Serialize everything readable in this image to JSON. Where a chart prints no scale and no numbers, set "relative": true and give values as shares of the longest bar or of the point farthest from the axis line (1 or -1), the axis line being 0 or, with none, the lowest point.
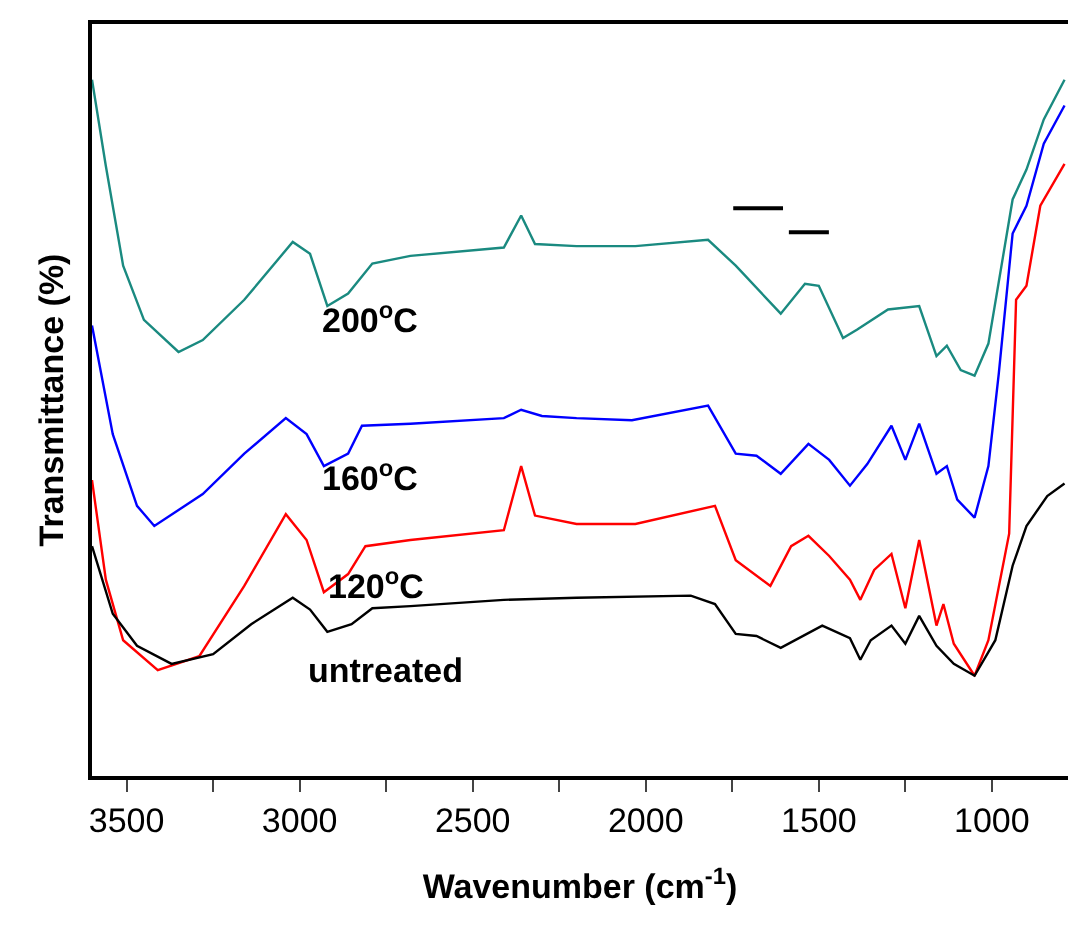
{
  "chart_data": {
    "type": "line",
    "relative": true,
    "xlabel": "Wavenumber (cm$^{-1}$)",
    "ylabel": "Transmittance (%)",
    "xlim": [
      3600,
      780
    ],
    "xticks": [
      3500,
      {
        "value": 3250,
        "label": null
      },
      3000,
      {
        "value": 2750,
        "label": null
      },
      2500,
      {
        "value": 2250,
        "label": null
      },
      2000,
      {
        "value": 1750,
        "label": null
      },
      1500,
      {
        "value": 1250,
        "label": null
      },
      1000
    ],
    "marker": "none",
    "line_style": "solid",
    "series": [
      {
        "color": "#1a8a80",
        "x": [
          3600,
          3560,
          3510,
          3450,
          3350,
          3280,
          3160,
          3020,
          2970,
          2920,
          2860,
          2790,
          2680,
          2410,
          2360,
          2320,
          2200,
          2030,
          1820,
          1740,
          1610,
          1540,
          1500,
          1430,
          1390,
          1300,
          1210,
          1160,
          1130,
          1090,
          1050,
          1010,
          940,
          900,
          850,
          790
        ],
        "values": [
          1.0,
          0.876,
          0.733,
          0.655,
          0.609,
          0.626,
          0.684,
          0.767,
          0.75,
          0.675,
          0.693,
          0.736,
          0.747,
          0.759,
          0.805,
          0.764,
          0.761,
          0.761,
          0.77,
          0.733,
          0.664,
          0.707,
          0.704,
          0.629,
          0.641,
          0.67,
          0.675,
          0.603,
          0.618,
          0.583,
          0.575,
          0.621,
          0.828,
          0.871,
          0.943,
          1.0
        ]
      },
      {
        "color": "#0000ff",
        "x": [
          3600,
          3540,
          3470,
          3420,
          3280,
          3160,
          3040,
          2980,
          2930,
          2860,
          2820,
          2680,
          2410,
          2360,
          2300,
          2200,
          2040,
          1820,
          1740,
          1680,
          1610,
          1530,
          1470,
          1410,
          1360,
          1290,
          1250,
          1210,
          1160,
          1130,
          1100,
          1050,
          1010,
          980,
          940,
          900,
          850,
          790
        ],
        "values": [
          0.647,
          0.491,
          0.388,
          0.359,
          0.405,
          0.463,
          0.514,
          0.491,
          0.445,
          0.463,
          0.503,
          0.506,
          0.514,
          0.526,
          0.517,
          0.514,
          0.511,
          0.532,
          0.463,
          0.46,
          0.434,
          0.477,
          0.454,
          0.417,
          0.448,
          0.503,
          0.454,
          0.506,
          0.434,
          0.445,
          0.397,
          0.371,
          0.445,
          0.578,
          0.779,
          0.819,
          0.908,
          0.963
        ]
      },
      {
        "color": "#ff0000",
        "x": [
          3600,
          3560,
          3510,
          3410,
          3290,
          3160,
          3040,
          2980,
          2930,
          2860,
          2810,
          2680,
          2410,
          2360,
          2320,
          2200,
          2030,
          1800,
          1740,
          1640,
          1580,
          1530,
          1470,
          1410,
          1380,
          1340,
          1290,
          1250,
          1210,
          1160,
          1140,
          1110,
          1050,
          1010,
          950,
          930,
          900,
          860,
          790
        ],
        "values": [
          0.425,
          0.282,
          0.195,
          0.152,
          0.172,
          0.273,
          0.376,
          0.339,
          0.264,
          0.29,
          0.33,
          0.339,
          0.353,
          0.445,
          0.374,
          0.362,
          0.362,
          0.388,
          0.31,
          0.273,
          0.33,
          0.345,
          0.316,
          0.282,
          0.253,
          0.296,
          0.319,
          0.241,
          0.339,
          0.216,
          0.247,
          0.19,
          0.144,
          0.195,
          0.348,
          0.684,
          0.704,
          0.819,
          0.879
        ]
      },
      {
        "color": "#000000",
        "x": [
          3600,
          3540,
          3470,
          3370,
          3250,
          3140,
          3020,
          2970,
          2920,
          2850,
          2790,
          2680,
          2410,
          2200,
          1870,
          1800,
          1740,
          1680,
          1610,
          1490,
          1410,
          1380,
          1350,
          1290,
          1250,
          1210,
          1160,
          1110,
          1050,
          990,
          940,
          900,
          840,
          790
        ],
        "values": [
          0.33,
          0.233,
          0.187,
          0.161,
          0.175,
          0.218,
          0.256,
          0.239,
          0.207,
          0.218,
          0.241,
          0.244,
          0.253,
          0.256,
          0.259,
          0.247,
          0.204,
          0.201,
          0.184,
          0.216,
          0.198,
          0.167,
          0.195,
          0.216,
          0.19,
          0.23,
          0.187,
          0.161,
          0.144,
          0.195,
          0.302,
          0.359,
          0.402,
          0.42
        ]
      }
    ],
    "annotations": [
      "200$^{o}$C",
      "160$^{o}$C",
      "120$^{o}$C",
      "untreated"
    ]
  }
}
